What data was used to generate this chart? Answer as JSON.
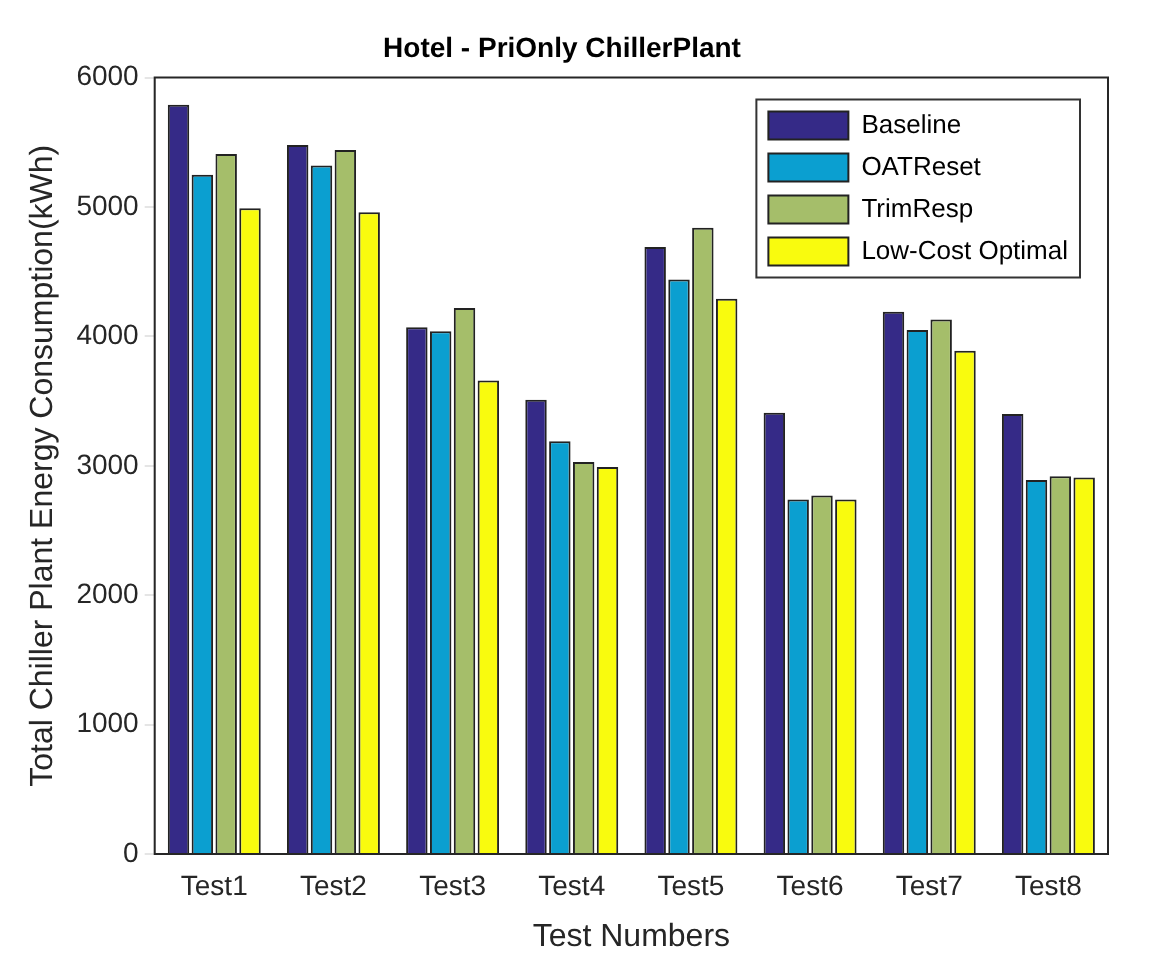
{
  "chart_data": {
    "type": "bar",
    "title": "Hotel - PriOnly ChillerPlant",
    "xlabel": "Test Numbers",
    "ylabel": "Total Chiller Plant Energy Consumption(kWh)",
    "categories": [
      "Test1",
      "Test2",
      "Test3",
      "Test4",
      "Test5",
      "Test6",
      "Test7",
      "Test8"
    ],
    "series": [
      {
        "name": "Baseline",
        "color": "#352a87",
        "values": [
          5790,
          5480,
          4070,
          3510,
          4690,
          3410,
          4190,
          3400
        ]
      },
      {
        "name": "OATReset",
        "color": "#0b9fd0",
        "values": [
          5250,
          5320,
          4040,
          3190,
          4440,
          2740,
          4050,
          2890
        ]
      },
      {
        "name": "TrimResp",
        "color": "#a5be6a",
        "values": [
          5410,
          5440,
          4220,
          3030,
          4840,
          2770,
          4130,
          2920
        ]
      },
      {
        "name": "Low-Cost Optimal",
        "color": "#f9fb0e",
        "values": [
          4990,
          4960,
          3660,
          2990,
          4290,
          2740,
          3890,
          2910
        ]
      }
    ],
    "ylim": [
      0,
      6000
    ],
    "yticks": [
      0,
      1000,
      2000,
      3000,
      4000,
      5000,
      6000
    ],
    "grid": false,
    "legend": "top right"
  }
}
